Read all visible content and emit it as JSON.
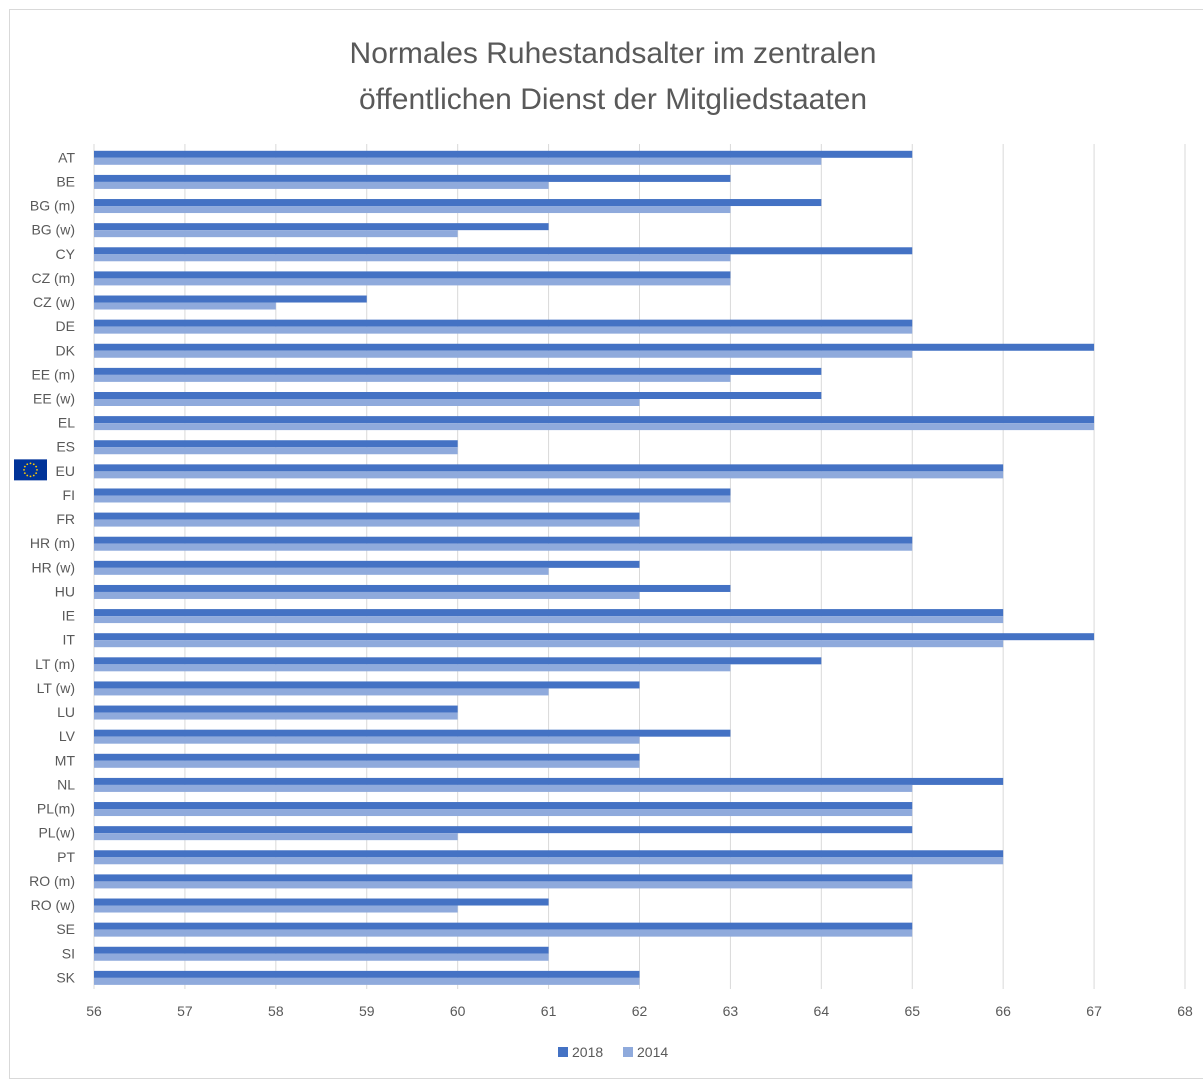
{
  "chart_data": {
    "type": "bar",
    "orientation": "horizontal",
    "title": "Normales Ruhestandsalter im zentralen öffentlichen Dienst der Mitgliedstaaten",
    "title_lines": [
      "Normales Ruhestandsalter im zentralen",
      "öffentlichen Dienst der Mitgliedstaaten"
    ],
    "categories": [
      "AT",
      "BE",
      "BG (m)",
      "BG (w)",
      "CY",
      "CZ (m)",
      "CZ (w)",
      "DE",
      "DK",
      "EE (m)",
      "EE (w)",
      "EL",
      "ES",
      "EU",
      "FI",
      "FR",
      "HR (m)",
      "HR (w)",
      "HU",
      "IE",
      "IT",
      "LT (m)",
      "LT (w)",
      "LU",
      "LV",
      "MT",
      "NL",
      "PL(m)",
      "PL(w)",
      "PT",
      "RO (m)",
      "RO (w)",
      "SE",
      "SI",
      "SK"
    ],
    "series": [
      {
        "name": "2018",
        "color": "#4472c4",
        "values": [
          65,
          63,
          64,
          61,
          65,
          63,
          59,
          65,
          67,
          64,
          64,
          67,
          60,
          66,
          63,
          62,
          65,
          62,
          63,
          66,
          67,
          64,
          62,
          60,
          63,
          62,
          66,
          65,
          65,
          66,
          65,
          61,
          65,
          61,
          62
        ]
      },
      {
        "name": "2014",
        "color": "#8faadc",
        "values": [
          64,
          61,
          63,
          60,
          63,
          63,
          58,
          65,
          65,
          63,
          62,
          67,
          60,
          66,
          63,
          62,
          65,
          61,
          62,
          66,
          66,
          63,
          61,
          60,
          62,
          62,
          65,
          65,
          60,
          66,
          65,
          60,
          65,
          61,
          62
        ]
      }
    ],
    "x_ticks": [
      "56",
      "57",
      "58",
      "59",
      "60",
      "61",
      "62",
      "63",
      "64",
      "65",
      "66",
      "67",
      "68"
    ],
    "xlim": [
      56,
      68
    ],
    "xlabel": "",
    "ylabel": "",
    "grid": true,
    "legend_position": "bottom",
    "flag_category": "EU",
    "flag_icon": "eu-flag-icon",
    "flag_color": "#003399",
    "flag_star_color": "#ffcc00"
  }
}
